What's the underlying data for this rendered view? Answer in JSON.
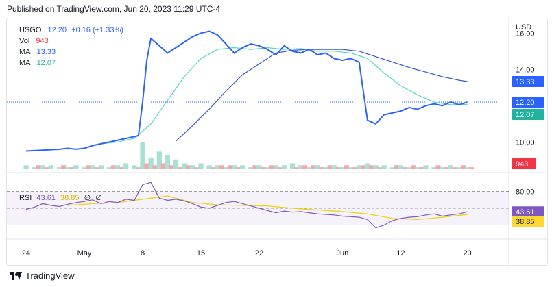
{
  "header": {
    "published": "Published on TradingView.com, Jun 20, 2023 11:29 UTC-4"
  },
  "legend": {
    "symbol": "USGO",
    "price": "12.20",
    "change": "+0.16 (+1.33%)",
    "vol_label": "Vol",
    "vol_value": "943",
    "ma1_label": "MA",
    "ma1_value": "13.33",
    "ma2_label": "MA",
    "ma2_value": "12.07"
  },
  "rsi_legend": {
    "label": "RSI",
    "value": "43.61",
    "ma": "38.85",
    "icon1": "∅",
    "icon2": "∅"
  },
  "footer": {
    "brand": "TradingView"
  },
  "colors": {
    "price_line": "#2962ff",
    "ma_slow": "#3355cc",
    "ma_fast": "#4dd9c9",
    "volume_up": "#a8e0d5",
    "volume_down": "#f5a7a7",
    "rsi_line": "#7e57c2",
    "rsi_ma": "#f0d000",
    "badge_price": "#2962ff",
    "badge_ma_slow": "#2962ff",
    "badge_ma_fast": "#20b4a0",
    "badge_vol": "#f23645",
    "badge_rsi": "#7e57c2",
    "badge_rsi_ma": "#fdd835"
  },
  "chart_data": {
    "type": "line",
    "title": "",
    "price_axis": {
      "label": "USD",
      "ticks": [
        10,
        14,
        16
      ],
      "tick_labels": [
        "10.00",
        "14.00",
        "16.00"
      ],
      "ylim": [
        8.5,
        16.5
      ]
    },
    "x_tick_labels": [
      "24",
      "May",
      "8",
      "15",
      "22",
      "Jun",
      "12",
      "20"
    ],
    "x_tick_days": [
      0,
      7,
      14,
      21,
      28,
      38,
      45,
      53
    ],
    "series": [
      {
        "name": "USGO",
        "x": [
          0,
          2,
          4,
          5,
          6,
          7,
          8,
          9,
          10,
          11,
          12,
          13,
          13.5,
          14,
          14.5,
          15,
          16,
          17,
          18,
          19,
          20,
          21,
          22,
          23,
          24,
          25,
          26,
          27,
          28,
          29,
          30,
          31,
          32,
          33,
          34,
          35,
          36,
          37,
          38,
          39,
          40,
          41,
          42,
          43,
          44,
          45,
          46,
          47,
          48,
          49,
          50,
          51,
          52,
          53
        ],
        "values": [
          9.5,
          9.55,
          9.6,
          9.65,
          9.6,
          9.65,
          9.8,
          9.9,
          10.0,
          10.1,
          10.2,
          10.3,
          10.35,
          12.2,
          14.5,
          15.7,
          15.3,
          14.9,
          15.2,
          15.5,
          15.8,
          16.0,
          16.1,
          15.9,
          15.4,
          14.9,
          15.2,
          15.4,
          15.3,
          15.1,
          14.8,
          15.3,
          15.0,
          14.9,
          15.1,
          14.8,
          14.9,
          14.6,
          14.5,
          14.6,
          14.4,
          11.2,
          11.0,
          11.5,
          11.6,
          11.7,
          11.9,
          11.8,
          12.0,
          12.1,
          12.0,
          12.2,
          12.05,
          12.2
        ]
      },
      {
        "name": "MA",
        "x": [
          18,
          20,
          22,
          24,
          26,
          28,
          30,
          32,
          34,
          36,
          38,
          40,
          42,
          44,
          46,
          48,
          50,
          52,
          53
        ],
        "values": [
          10.05,
          10.9,
          11.8,
          12.8,
          13.7,
          14.3,
          14.9,
          15.05,
          15.1,
          15.1,
          15.1,
          15.0,
          14.7,
          14.4,
          14.1,
          13.85,
          13.6,
          13.4,
          13.33
        ]
      },
      {
        "name": "MA",
        "x": [
          9,
          11,
          13,
          15,
          17,
          19,
          21,
          23,
          25,
          27,
          29,
          31,
          33,
          35,
          37,
          39,
          41,
          43,
          45,
          47,
          49,
          51,
          53
        ],
        "values": [
          9.9,
          10.0,
          10.2,
          11.0,
          12.3,
          13.6,
          14.6,
          15.1,
          15.2,
          15.1,
          15.2,
          15.1,
          15.15,
          15.0,
          15.0,
          14.9,
          14.6,
          13.8,
          13.1,
          12.6,
          12.2,
          12.05,
          12.07
        ]
      }
    ],
    "volume": {
      "name": "Vol",
      "up": [
        2,
        1,
        2,
        2,
        1,
        1,
        2,
        1,
        2,
        2,
        1,
        2,
        3,
        2,
        14,
        6,
        9,
        7,
        5,
        3,
        2,
        3,
        2,
        2,
        1,
        2,
        2,
        1,
        2,
        1,
        2,
        2,
        3,
        2,
        1,
        2,
        1,
        2,
        1,
        1,
        2,
        3,
        2,
        2,
        1,
        2,
        1,
        1,
        2,
        1,
        1,
        2,
        1,
        1
      ],
      "down": [
        0,
        2,
        1,
        0,
        2,
        1,
        0,
        2,
        1,
        0,
        2,
        1,
        0,
        1,
        3,
        2,
        3,
        2,
        1,
        2,
        1,
        0,
        1,
        2,
        2,
        1,
        0,
        2,
        1,
        2,
        1,
        0,
        1,
        2,
        2,
        1,
        2,
        1,
        2,
        1,
        2,
        2,
        1,
        0,
        2,
        1,
        2,
        1,
        0,
        2,
        1,
        1,
        2,
        1
      ]
    },
    "rsi": {
      "name": "RSI",
      "levels": [
        80,
        50,
        20
      ],
      "level_labels": [
        "80.00",
        "",
        ""
      ],
      "ylim": [
        0,
        100
      ],
      "x": [
        0,
        1,
        2,
        3,
        4,
        5,
        6,
        7,
        8,
        9,
        10,
        11,
        12,
        13,
        14,
        15,
        16,
        17,
        18,
        19,
        20,
        21,
        22,
        23,
        24,
        25,
        26,
        27,
        28,
        29,
        30,
        31,
        32,
        33,
        34,
        35,
        36,
        37,
        38,
        39,
        40,
        41,
        42,
        43,
        44,
        45,
        46,
        47,
        48,
        49,
        50,
        51,
        52,
        53
      ],
      "values": [
        48,
        52,
        58,
        55,
        53,
        57,
        60,
        62,
        65,
        58,
        62,
        60,
        66,
        64,
        92,
        96,
        68,
        64,
        66,
        63,
        58,
        52,
        50,
        55,
        60,
        62,
        58,
        54,
        50,
        46,
        42,
        45,
        43,
        44,
        42,
        40,
        39,
        38,
        36,
        35,
        34,
        30,
        15,
        20,
        28,
        32,
        34,
        35,
        38,
        40,
        36,
        38,
        40,
        43.61
      ],
      "ma_x": [
        5,
        8,
        11,
        14,
        17,
        20,
        23,
        26,
        29,
        32,
        35,
        38,
        41,
        44,
        47,
        50,
        53
      ],
      "ma_values": [
        55,
        58,
        60,
        66,
        72,
        60,
        56,
        55,
        54,
        50,
        47,
        44,
        40,
        32,
        30,
        34,
        38.85
      ]
    }
  }
}
